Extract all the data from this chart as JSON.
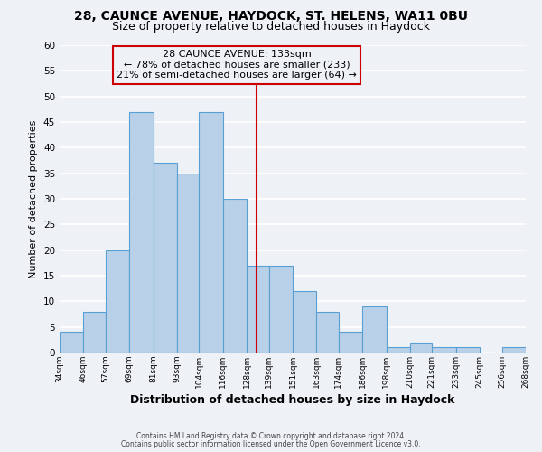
{
  "title1": "28, CAUNCE AVENUE, HAYDOCK, ST. HELENS, WA11 0BU",
  "title2": "Size of property relative to detached houses in Haydock",
  "xlabel": "Distribution of detached houses by size in Haydock",
  "ylabel": "Number of detached properties",
  "footer1": "Contains HM Land Registry data © Crown copyright and database right 2024.",
  "footer2": "Contains public sector information licensed under the Open Government Licence v3.0.",
  "bin_edges": [
    34,
    46,
    57,
    69,
    81,
    93,
    104,
    116,
    128,
    139,
    151,
    163,
    174,
    186,
    198,
    210,
    221,
    233,
    245,
    256,
    268
  ],
  "bin_labels": [
    "34sqm",
    "46sqm",
    "57sqm",
    "69sqm",
    "81sqm",
    "93sqm",
    "104sqm",
    "116sqm",
    "128sqm",
    "139sqm",
    "151sqm",
    "163sqm",
    "174sqm",
    "186sqm",
    "198sqm",
    "210sqm",
    "221sqm",
    "233sqm",
    "245sqm",
    "256sqm",
    "268sqm"
  ],
  "counts": [
    4,
    8,
    20,
    47,
    37,
    35,
    47,
    30,
    17,
    17,
    12,
    8,
    4,
    9,
    1,
    2,
    1,
    1,
    0,
    1
  ],
  "bar_color": "#b8d0e8",
  "bar_edge_color": "#5a9fd4",
  "property_line_x": 133,
  "property_line_color": "#cc0000",
  "annotation_title": "28 CAUNCE AVENUE: 133sqm",
  "annotation_line1": "← 78% of detached houses are smaller (233)",
  "annotation_line2": "21% of semi-detached houses are larger (64) →",
  "annotation_box_edge": "#cc0000",
  "ylim": [
    0,
    60
  ],
  "yticks": [
    0,
    5,
    10,
    15,
    20,
    25,
    30,
    35,
    40,
    45,
    50,
    55,
    60
  ],
  "background_color": "#eef2f7",
  "grid_color": "#ffffff",
  "title1_fontsize": 10,
  "title2_fontsize": 9,
  "xlabel_fontsize": 9,
  "ylabel_fontsize": 8,
  "annot_fontsize": 8
}
